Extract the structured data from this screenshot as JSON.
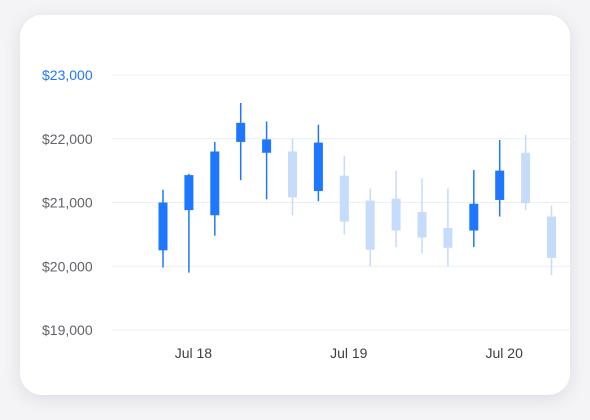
{
  "chart_data": {
    "type": "candlestick",
    "title": "",
    "xlabel": "",
    "ylabel": "",
    "ylim": [
      19000,
      23000
    ],
    "y_ticks": [
      "$19,000",
      "$20,000",
      "$21,000",
      "$22,000",
      "$23,000"
    ],
    "y_tick_values": [
      19000,
      20000,
      21000,
      22000,
      23000
    ],
    "highlighted_tick": "$23,000",
    "x_ticks": [
      {
        "label": "Jul 18",
        "index": 1
      },
      {
        "label": "Jul 19",
        "index": 7
      },
      {
        "label": "Jul 20",
        "index": 13
      }
    ],
    "grid": true,
    "colors": {
      "up": "#1f77ff",
      "down": "#c6dcfb",
      "accent": "#1f77ff"
    },
    "candles": [
      {
        "open": 20250,
        "high": 21200,
        "low": 19980,
        "close": 21000
      },
      {
        "open": 20880,
        "high": 21450,
        "low": 19900,
        "close": 21430
      },
      {
        "open": 20800,
        "high": 21950,
        "low": 20480,
        "close": 21800
      },
      {
        "open": 21950,
        "high": 22560,
        "low": 21350,
        "close": 22250
      },
      {
        "open": 21780,
        "high": 22270,
        "low": 21050,
        "close": 21990
      },
      {
        "open": 21800,
        "high": 22000,
        "low": 20800,
        "close": 21080
      },
      {
        "open": 21180,
        "high": 22220,
        "low": 21020,
        "close": 21940
      },
      {
        "open": 21420,
        "high": 21730,
        "low": 20500,
        "close": 20700
      },
      {
        "open": 21030,
        "high": 21220,
        "low": 20000,
        "close": 20260
      },
      {
        "open": 21060,
        "high": 21500,
        "low": 20300,
        "close": 20560
      },
      {
        "open": 20850,
        "high": 21380,
        "low": 20200,
        "close": 20450
      },
      {
        "open": 20600,
        "high": 21220,
        "low": 20000,
        "close": 20290
      },
      {
        "open": 20560,
        "high": 21510,
        "low": 20300,
        "close": 20980
      },
      {
        "open": 21040,
        "high": 21980,
        "low": 20780,
        "close": 21500
      },
      {
        "open": 21780,
        "high": 22060,
        "low": 20880,
        "close": 20990
      },
      {
        "open": 20780,
        "high": 20950,
        "low": 19860,
        "close": 20130
      }
    ]
  }
}
